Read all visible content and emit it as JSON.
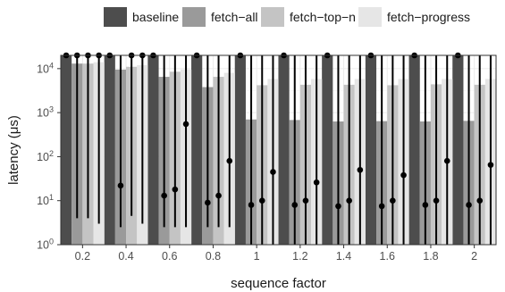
{
  "chart_data": {
    "type": "bar",
    "xlabel": "sequence factor",
    "ylabel": "latency (μs)",
    "y_scale": "log10",
    "ylim": [
      1,
      20000
    ],
    "y_ticks": [
      {
        "value": 1,
        "base": "10",
        "exp": "0"
      },
      {
        "value": 10,
        "base": "10",
        "exp": "1"
      },
      {
        "value": 100,
        "base": "10",
        "exp": "2"
      },
      {
        "value": 1000,
        "base": "10",
        "exp": "3"
      },
      {
        "value": 10000,
        "base": "10",
        "exp": "4"
      }
    ],
    "categories": [
      "0.2",
      "0.4",
      "0.6",
      "0.8",
      "1",
      "1.2",
      "1.4",
      "1.6",
      "1.8",
      "2"
    ],
    "legend_position": "top",
    "grid": true,
    "series": [
      {
        "name": "baseline",
        "color": "#4d4d4d",
        "values": [
          20000,
          20000,
          20000,
          20000,
          20000,
          20000,
          20000,
          20000,
          20000,
          20000
        ],
        "points": [
          20000,
          20000,
          20000,
          20000,
          20000,
          20000,
          20000,
          20000,
          20000,
          20000
        ],
        "err_low": [
          20000,
          20000,
          20000,
          20000,
          20000,
          20000,
          20000,
          20000,
          20000,
          20000
        ],
        "err_high": [
          20000,
          20000,
          20000,
          20000,
          20000,
          20000,
          20000,
          20000,
          20000,
          20000
        ]
      },
      {
        "name": "fetch−all",
        "color": "#9a9a9a",
        "values": [
          13000,
          9500,
          6500,
          3800,
          700,
          680,
          630,
          640,
          630,
          650
        ],
        "points": [
          20000,
          22,
          13,
          9,
          8,
          8,
          7.5,
          7.5,
          8,
          8
        ],
        "err_low": [
          4,
          2.5,
          2.5,
          2.5,
          1,
          1,
          1,
          1,
          1,
          1
        ],
        "err_high": [
          20000,
          20000,
          20000,
          20000,
          20000,
          20000,
          20000,
          20000,
          20000,
          20000
        ]
      },
      {
        "name": "fetch−top−n",
        "color": "#c4c4c4",
        "values": [
          13000,
          11000,
          8500,
          6500,
          4200,
          4300,
          4300,
          4200,
          4400,
          4300
        ],
        "points": [
          20000,
          20000,
          18,
          13,
          10,
          10,
          10,
          10,
          10,
          10
        ],
        "err_low": [
          4,
          4.5,
          2.5,
          2.5,
          1,
          1,
          1,
          1,
          1,
          1
        ],
        "err_high": [
          20000,
          20000,
          20000,
          20000,
          20000,
          20000,
          20000,
          20000,
          20000,
          20000
        ]
      },
      {
        "name": "fetch−progress",
        "color": "#e6e6e6",
        "values": [
          14000,
          12000,
          9500,
          8000,
          5800,
          5800,
          5800,
          5800,
          5800,
          5800
        ],
        "points": [
          20000,
          20000,
          550,
          80,
          45,
          26,
          50,
          38,
          80,
          65
        ],
        "err_low": [
          3,
          3,
          2.5,
          2.5,
          1,
          1,
          1,
          1,
          1,
          1
        ],
        "err_high": [
          20000,
          20000,
          20000,
          20000,
          20000,
          20000,
          20000,
          20000,
          20000,
          20000
        ]
      }
    ]
  }
}
